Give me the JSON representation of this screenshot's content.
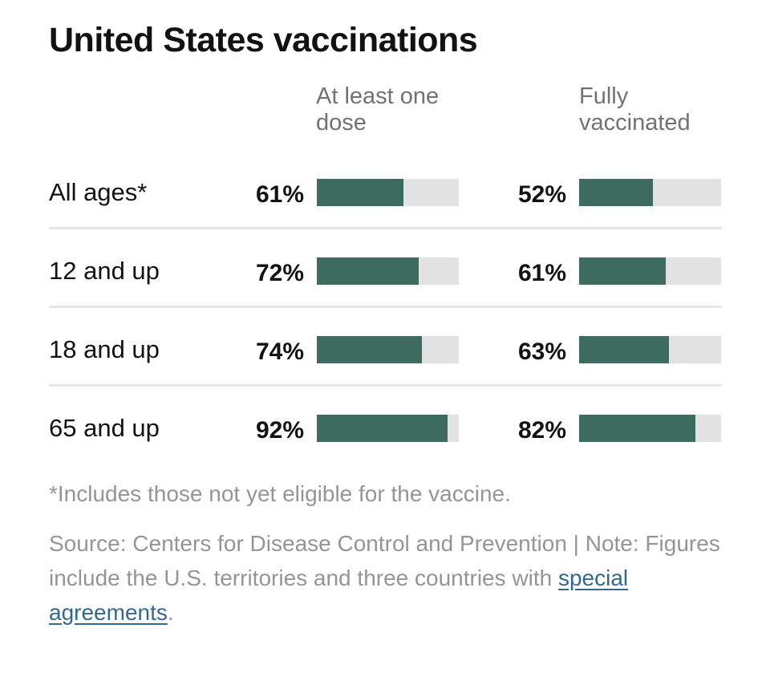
{
  "title": "United States vaccinations",
  "columns": {
    "dose1": "At least one dose",
    "full": "Fully vaccinated"
  },
  "colors": {
    "fill": "#3e6b5f",
    "track": "#e2e2e2",
    "link": "#326891"
  },
  "chart_data": {
    "type": "bar",
    "title": "United States vaccinations",
    "categories": [
      "All ages*",
      "12 and up",
      "18 and up",
      "65 and up"
    ],
    "series": [
      {
        "name": "At least one dose",
        "values": [
          61,
          72,
          74,
          92
        ],
        "labels": [
          "61%",
          "72%",
          "74%",
          "92%"
        ]
      },
      {
        "name": "Fully vaccinated",
        "values": [
          52,
          61,
          63,
          82
        ],
        "labels": [
          "52%",
          "61%",
          "63%",
          "82%"
        ]
      }
    ],
    "ylim": [
      0,
      100
    ]
  },
  "footnote": "*Includes those not yet eligible for the vaccine.",
  "source_text": "Source: Centers for Disease Control and Prevention | Note: Figures include the U.S. territories and three countries with ",
  "source_link": "special agreements",
  "source_end": "."
}
